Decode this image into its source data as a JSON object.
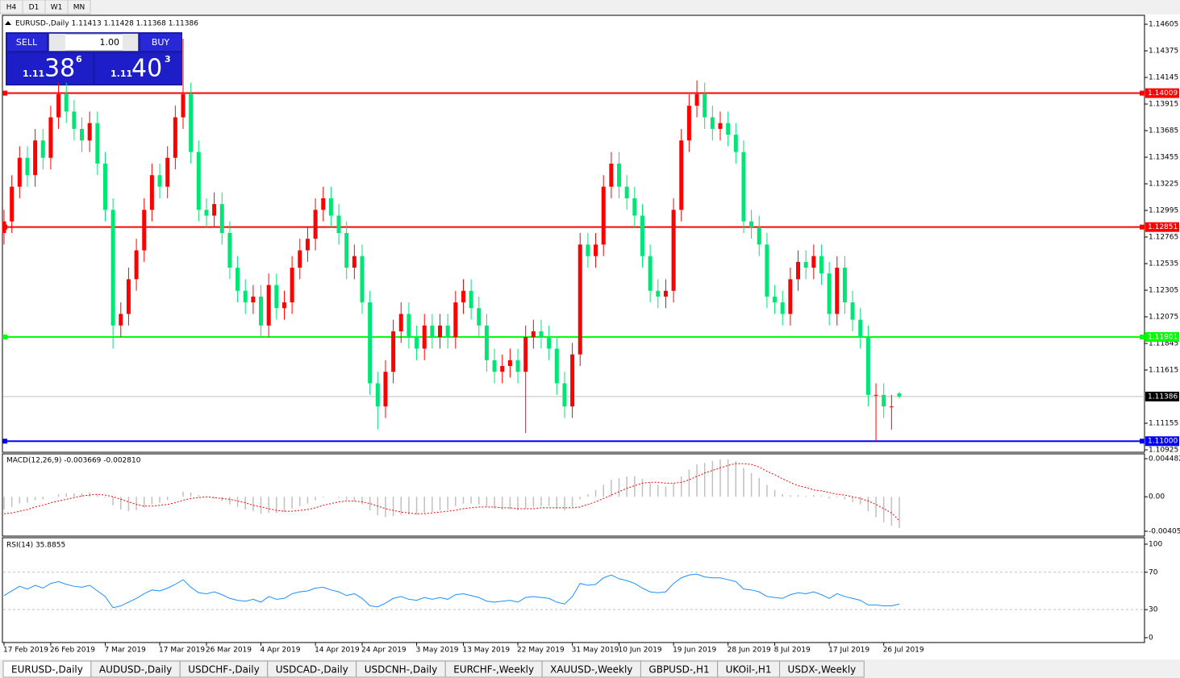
{
  "toolbar": {
    "timeframes": [
      "H4",
      "D1",
      "W1",
      "MN"
    ]
  },
  "trade_panel": {
    "sell": "SELL",
    "buy": "BUY",
    "volume": "1.00",
    "bid": {
      "big_figure": "1.11",
      "pips": "38",
      "point": "6"
    },
    "ask": {
      "big_figure": "1.11",
      "pips": "40",
      "point": "3"
    }
  },
  "chart_data": [
    {
      "type": "candlestick",
      "title": "EURUSD-,Daily  1.11413 1.11428 1.11368 1.11386",
      "up_color": "#ff0000",
      "down_color": "#00e676",
      "ylim": [
        1.10904,
        1.14682
      ],
      "yticks": [
        1.14605,
        1.14375,
        1.14145,
        1.13915,
        1.13685,
        1.13455,
        1.13225,
        1.12995,
        1.12765,
        1.12535,
        1.12305,
        1.12075,
        1.11845,
        1.11615,
        1.11155,
        1.10925
      ],
      "levels": [
        {
          "value": 1.14009,
          "label": "1.14009",
          "color": "#ff0000"
        },
        {
          "value": 1.12851,
          "label": "1.12851",
          "color": "#ff0000"
        },
        {
          "value": 1.11901,
          "label": "1.11901",
          "color": "#00ff00"
        },
        {
          "value": 1.11,
          "label": "1.11000",
          "color": "#0000ff"
        }
      ],
      "current_price": {
        "value": 1.11386,
        "label": "1.11386",
        "color": "#000000"
      },
      "categories": [
        "17 Feb 2019",
        null,
        null,
        null,
        null,
        null,
        "26 Feb 2019",
        null,
        null,
        null,
        null,
        null,
        null,
        "7 Mar 2019",
        null,
        null,
        null,
        null,
        null,
        null,
        "17 Mar 2019",
        null,
        null,
        null,
        null,
        null,
        "26 Mar 2019",
        null,
        null,
        null,
        null,
        null,
        null,
        "4 Apr 2019",
        null,
        null,
        null,
        null,
        null,
        null,
        "14 Apr 2019",
        null,
        null,
        null,
        null,
        null,
        "24 Apr 2019",
        null,
        null,
        null,
        null,
        null,
        null,
        "3 May 2019",
        null,
        null,
        null,
        null,
        null,
        "13 May 2019",
        null,
        null,
        null,
        null,
        null,
        null,
        "22 May 2019",
        null,
        null,
        null,
        null,
        null,
        null,
        "31 May 2019",
        null,
        null,
        null,
        null,
        null,
        "10 Jun 2019",
        null,
        null,
        null,
        null,
        null,
        null,
        "19 Jun 2019",
        null,
        null,
        null,
        null,
        null,
        null,
        "28 Jun 2019",
        null,
        null,
        null,
        null,
        null,
        "8 Jul 2019",
        null,
        null,
        null,
        null,
        null,
        null,
        "17 Jul 2019",
        null,
        null,
        null,
        null,
        null,
        null,
        "26 Jul 2019",
        null,
        null
      ],
      "open": [
        1.128,
        1.129,
        1.132,
        1.1345,
        1.133,
        1.136,
        1.1345,
        1.138,
        1.14,
        1.1385,
        1.137,
        1.136,
        1.1375,
        1.134,
        1.13,
        1.12,
        1.121,
        1.124,
        1.1265,
        1.13,
        1.133,
        1.132,
        1.1345,
        1.138,
        1.14,
        1.135,
        1.13,
        1.1295,
        1.1305,
        1.128,
        1.125,
        1.123,
        1.122,
        1.1225,
        1.12,
        1.1235,
        1.1215,
        1.122,
        1.125,
        1.1265,
        1.1275,
        1.13,
        1.131,
        1.1295,
        1.128,
        1.125,
        1.126,
        1.122,
        1.115,
        1.113,
        1.116,
        1.1195,
        1.121,
        1.119,
        1.118,
        1.12,
        1.119,
        1.12,
        1.119,
        1.122,
        1.123,
        1.1215,
        1.12,
        1.117,
        1.116,
        1.1165,
        1.117,
        1.116,
        1.119,
        1.1195,
        1.119,
        1.118,
        1.115,
        1.113,
        1.1175,
        1.127,
        1.126,
        1.127,
        1.132,
        1.134,
        1.132,
        1.131,
        1.1295,
        1.126,
        1.123,
        1.1225,
        1.123,
        1.13,
        1.136,
        1.139,
        1.14,
        1.138,
        1.137,
        1.1375,
        1.1365,
        1.135,
        1.129,
        1.1285,
        1.127,
        1.1225,
        1.122,
        1.121,
        1.124,
        1.1255,
        1.125,
        1.126,
        1.1245,
        1.121,
        1.125,
        1.122,
        1.1205,
        1.119,
        1.114,
        1.114,
        1.113,
        1.11413
      ],
      "high": [
        1.13,
        1.133,
        1.1355,
        1.1355,
        1.137,
        1.137,
        1.139,
        1.141,
        1.141,
        1.1395,
        1.138,
        1.1385,
        1.1385,
        1.135,
        1.131,
        1.122,
        1.125,
        1.1275,
        1.131,
        1.134,
        1.134,
        1.1355,
        1.139,
        1.1448,
        1.141,
        1.136,
        1.131,
        1.1315,
        1.1315,
        1.129,
        1.126,
        1.124,
        1.1235,
        1.1235,
        1.1245,
        1.1245,
        1.123,
        1.126,
        1.1275,
        1.1285,
        1.131,
        1.132,
        1.132,
        1.1305,
        1.129,
        1.127,
        1.127,
        1.123,
        1.116,
        1.117,
        1.1205,
        1.122,
        1.122,
        1.12,
        1.121,
        1.121,
        1.121,
        1.121,
        1.123,
        1.124,
        1.124,
        1.1225,
        1.121,
        1.118,
        1.1175,
        1.118,
        1.118,
        1.12,
        1.1205,
        1.1205,
        1.12,
        1.119,
        1.116,
        1.1185,
        1.128,
        1.128,
        1.128,
        1.133,
        1.135,
        1.135,
        1.133,
        1.132,
        1.1305,
        1.127,
        1.124,
        1.124,
        1.131,
        1.137,
        1.14,
        1.1412,
        1.141,
        1.139,
        1.1385,
        1.1385,
        1.1375,
        1.136,
        1.13,
        1.1295,
        1.128,
        1.1235,
        1.123,
        1.125,
        1.1265,
        1.1265,
        1.127,
        1.127,
        1.1255,
        1.126,
        1.126,
        1.123,
        1.1215,
        1.12,
        1.115,
        1.115,
        1.114,
        1.11428
      ],
      "low": [
        1.127,
        1.128,
        1.131,
        1.132,
        1.132,
        1.1335,
        1.1335,
        1.137,
        1.1375,
        1.136,
        1.135,
        1.135,
        1.133,
        1.129,
        1.118,
        1.119,
        1.12,
        1.123,
        1.1255,
        1.129,
        1.131,
        1.131,
        1.1335,
        1.137,
        1.134,
        1.129,
        1.1285,
        1.1285,
        1.127,
        1.124,
        1.122,
        1.121,
        1.121,
        1.119,
        1.119,
        1.1205,
        1.1205,
        1.121,
        1.124,
        1.1255,
        1.1265,
        1.129,
        1.1285,
        1.127,
        1.124,
        1.124,
        1.121,
        1.114,
        1.111,
        1.112,
        1.115,
        1.1185,
        1.118,
        1.117,
        1.117,
        1.118,
        1.118,
        1.118,
        1.118,
        1.121,
        1.1205,
        1.119,
        1.116,
        1.115,
        1.115,
        1.1155,
        1.115,
        1.1107,
        1.118,
        1.118,
        1.117,
        1.114,
        1.112,
        1.112,
        1.1165,
        1.125,
        1.125,
        1.126,
        1.131,
        1.131,
        1.13,
        1.1285,
        1.125,
        1.122,
        1.1215,
        1.1215,
        1.122,
        1.129,
        1.135,
        1.138,
        1.137,
        1.136,
        1.136,
        1.1355,
        1.134,
        1.128,
        1.1275,
        1.126,
        1.1215,
        1.121,
        1.12,
        1.12,
        1.123,
        1.124,
        1.124,
        1.1235,
        1.12,
        1.12,
        1.121,
        1.1195,
        1.118,
        1.113,
        1.11,
        1.112,
        1.111,
        1.11368
      ],
      "close": [
        1.129,
        1.132,
        1.1345,
        1.133,
        1.136,
        1.1345,
        1.138,
        1.14,
        1.1385,
        1.137,
        1.136,
        1.1375,
        1.134,
        1.13,
        1.12,
        1.121,
        1.124,
        1.1265,
        1.13,
        1.133,
        1.132,
        1.1345,
        1.138,
        1.14,
        1.135,
        1.13,
        1.1295,
        1.1305,
        1.128,
        1.125,
        1.123,
        1.122,
        1.1225,
        1.12,
        1.1235,
        1.1215,
        1.122,
        1.125,
        1.1265,
        1.1275,
        1.13,
        1.131,
        1.1295,
        1.128,
        1.125,
        1.126,
        1.122,
        1.115,
        1.113,
        1.116,
        1.1195,
        1.121,
        1.119,
        1.118,
        1.12,
        1.119,
        1.12,
        1.119,
        1.122,
        1.123,
        1.1215,
        1.12,
        1.117,
        1.116,
        1.1165,
        1.117,
        1.116,
        1.119,
        1.1195,
        1.119,
        1.118,
        1.115,
        1.113,
        1.1175,
        1.127,
        1.126,
        1.127,
        1.132,
        1.134,
        1.132,
        1.131,
        1.1295,
        1.126,
        1.123,
        1.1225,
        1.123,
        1.13,
        1.136,
        1.139,
        1.14,
        1.138,
        1.137,
        1.1375,
        1.1365,
        1.135,
        1.129,
        1.1285,
        1.127,
        1.1225,
        1.122,
        1.121,
        1.124,
        1.1255,
        1.125,
        1.126,
        1.1245,
        1.121,
        1.125,
        1.122,
        1.1205,
        1.119,
        1.114,
        1.114,
        1.113,
        1.113,
        1.11386
      ]
    },
    {
      "type": "macd",
      "title": "MACD(12,26,9) -0.003669 -0.002810",
      "ylim": [
        -0.00463,
        0.00505
      ],
      "yticks": [
        0.004482,
        {
          "value": 0,
          "label": "0.00"
        },
        -0.004057
      ],
      "series": [
        {
          "color": "#c0c0c0",
          "values": [
            -0.0015,
            -0.0012,
            -0.0008,
            -0.0007,
            -0.0004,
            -0.0003,
            0.0,
            0.0003,
            0.0004,
            0.0004,
            0.0004,
            0.0005,
            0.0003,
            -0.0001,
            -0.001,
            -0.0015,
            -0.0017,
            -0.0016,
            -0.0013,
            -0.0009,
            -0.0007,
            -0.0004,
            0.0,
            0.0006,
            0.0005,
            0.0002,
            -0.0001,
            -0.0002,
            -0.0005,
            -0.0009,
            -0.0012,
            -0.0015,
            -0.0017,
            -0.002,
            -0.0019,
            -0.0019,
            -0.0018,
            -0.0014,
            -0.0011,
            -0.0008,
            -0.0004,
            -0.0001,
            0.0,
            -0.0001,
            -0.0004,
            -0.0005,
            -0.0009,
            -0.0016,
            -0.0022,
            -0.0024,
            -0.0023,
            -0.0021,
            -0.0021,
            -0.0021,
            -0.0019,
            -0.0018,
            -0.0016,
            -0.0015,
            -0.0011,
            -0.0008,
            -0.0008,
            -0.0009,
            -0.0012,
            -0.0014,
            -0.0015,
            -0.0015,
            -0.0016,
            -0.0014,
            -0.0012,
            -0.0011,
            -0.0011,
            -0.0014,
            -0.0016,
            -0.0012,
            -0.0003,
            0.0003,
            0.0008,
            0.0014,
            0.002,
            0.0022,
            0.0024,
            0.0024,
            0.0021,
            0.0017,
            0.0014,
            0.0012,
            0.0016,
            0.0024,
            0.0032,
            0.0038,
            0.004,
            0.0042,
            0.0044,
            0.0044,
            0.0042,
            0.0034,
            0.0028,
            0.0022,
            0.0014,
            0.0008,
            0.0003,
            0.0002,
            0.0002,
            0.0001,
            0.0002,
            0.0001,
            -0.0002,
            -0.0001,
            -0.0003,
            -0.0006,
            -0.0009,
            -0.0017,
            -0.0024,
            -0.003,
            -0.0034,
            -0.003669
          ]
        },
        {
          "color": "#ff0000",
          "values": [
            -0.002,
            -0.0019,
            -0.0017,
            -0.0015,
            -0.0012,
            -0.001,
            -0.0007,
            -0.0005,
            -0.0003,
            -0.0001,
            0.0001,
            0.0002,
            0.0003,
            0.0002,
            0.0,
            -0.0003,
            -0.0006,
            -0.0009,
            -0.0011,
            -0.0011,
            -0.001,
            -0.0009,
            -0.0007,
            -0.0004,
            -0.0002,
            -0.0001,
            0.0,
            -0.0001,
            -0.0002,
            -0.0003,
            -0.0005,
            -0.0007,
            -0.001,
            -0.0012,
            -0.0014,
            -0.0016,
            -0.0017,
            -0.0017,
            -0.0016,
            -0.0015,
            -0.0013,
            -0.001,
            -0.0008,
            -0.0006,
            -0.0005,
            -0.0005,
            -0.0006,
            -0.0008,
            -0.0011,
            -0.0014,
            -0.0016,
            -0.0018,
            -0.0019,
            -0.002,
            -0.002,
            -0.0019,
            -0.0018,
            -0.0017,
            -0.0016,
            -0.0014,
            -0.0013,
            -0.0012,
            -0.0012,
            -0.0012,
            -0.0013,
            -0.0013,
            -0.0014,
            -0.0014,
            -0.0014,
            -0.0013,
            -0.0013,
            -0.0013,
            -0.0013,
            -0.0013,
            -0.0012,
            -0.0009,
            -0.0006,
            -0.0002,
            0.0002,
            0.0006,
            0.001,
            0.0013,
            0.0016,
            0.0017,
            0.0017,
            0.0016,
            0.0016,
            0.0017,
            0.002,
            0.0024,
            0.0028,
            0.0031,
            0.0034,
            0.0037,
            0.0039,
            0.0039,
            0.0038,
            0.0035,
            0.003,
            0.0026,
            0.0021,
            0.0017,
            0.0013,
            0.0011,
            0.0008,
            0.0007,
            0.0005,
            0.0003,
            0.0002,
            0.0,
            -0.0002,
            -0.0005,
            -0.0009,
            -0.0014,
            -0.0019,
            -0.00281
          ]
        }
      ]
    },
    {
      "type": "rsi",
      "title": "RSI(14) 35.8855",
      "ylim": [
        -5.2,
        106.9
      ],
      "yticks": [
        100,
        70,
        30,
        0
      ],
      "level_lines": [
        70,
        30
      ],
      "color": "#1e90ff",
      "values": [
        45,
        50,
        55,
        52,
        56,
        53,
        58,
        60,
        57,
        55,
        54,
        56,
        50,
        44,
        32,
        34,
        38,
        42,
        47,
        51,
        50,
        53,
        57,
        62,
        54,
        48,
        47,
        49,
        46,
        42,
        40,
        39,
        41,
        38,
        44,
        41,
        42,
        47,
        49,
        50,
        53,
        54,
        51,
        49,
        45,
        47,
        42,
        34,
        33,
        37,
        42,
        44,
        41,
        40,
        43,
        41,
        43,
        41,
        46,
        47,
        45,
        43,
        39,
        38,
        39,
        40,
        38,
        43,
        44,
        43,
        42,
        38,
        36,
        44,
        58,
        56,
        57,
        64,
        67,
        63,
        61,
        58,
        53,
        49,
        48,
        49,
        58,
        64,
        67,
        68,
        65,
        64,
        64,
        62,
        60,
        52,
        51,
        49,
        44,
        43,
        42,
        46,
        48,
        47,
        49,
        46,
        42,
        47,
        44,
        42,
        40,
        35,
        35,
        34,
        34,
        35.8855
      ]
    }
  ],
  "tabs": [
    "EURUSD-,Daily",
    "AUDUSD-,Daily",
    "USDCHF-,Daily",
    "USDCAD-,Daily",
    "USDCNH-,Daily",
    "EURCHF-,Weekly",
    "XAUUSD-,Weekly",
    "GBPUSD-,H1",
    "UKOil-,H1",
    "USDX-,Weekly"
  ]
}
